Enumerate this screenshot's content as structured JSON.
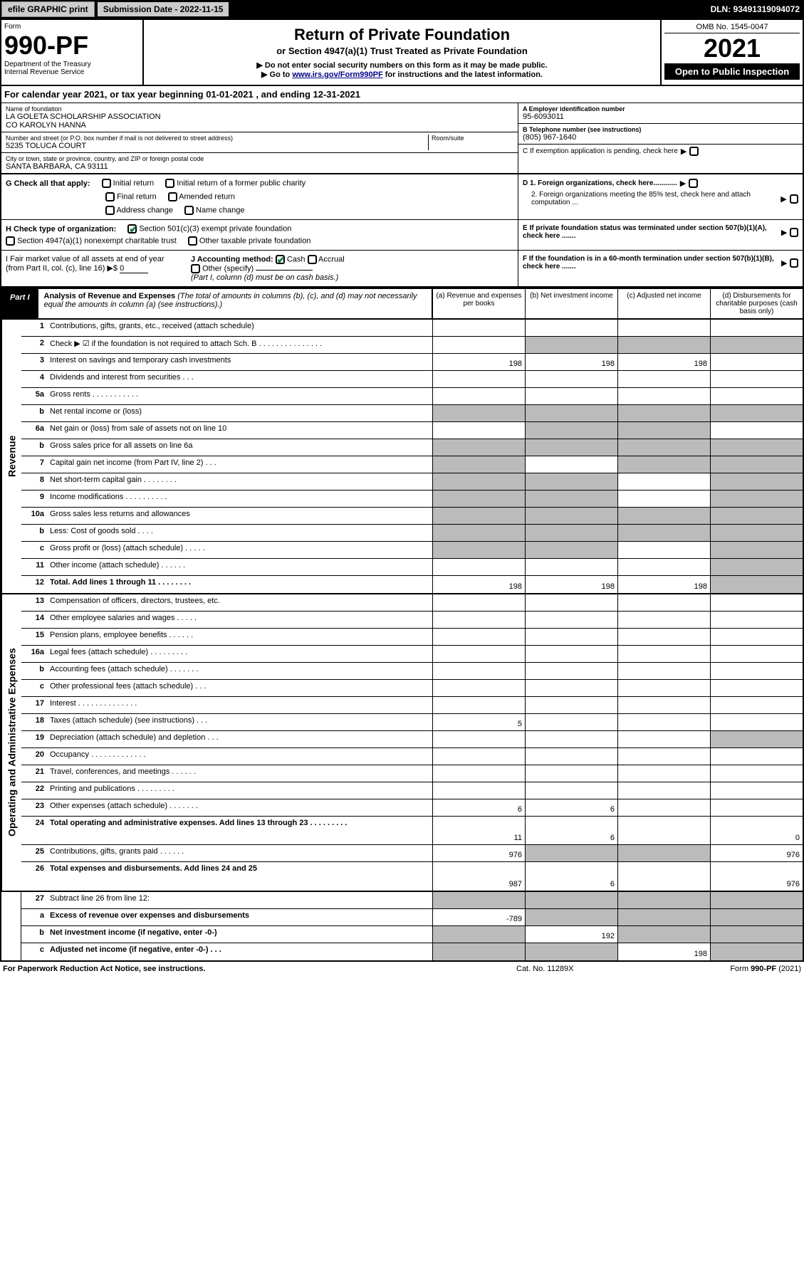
{
  "header_bar": {
    "efile_btn": "efile GRAPHIC print",
    "submission_date": "Submission Date - 2022-11-15",
    "dln": "DLN: 93491319094072"
  },
  "form_header": {
    "form_label": "Form",
    "form_number": "990-PF",
    "dept": "Department of the Treasury",
    "irs": "Internal Revenue Service",
    "title": "Return of Private Foundation",
    "subtitle": "or Section 4947(a)(1) Trust Treated as Private Foundation",
    "warning": "▶ Do not enter social security numbers on this form as it may be made public.",
    "goto_prefix": "▶ Go to ",
    "goto_link": "www.irs.gov/Form990PF",
    "goto_suffix": " for instructions and the latest information.",
    "omb": "OMB No. 1545-0047",
    "year": "2021",
    "open_public": "Open to Public Inspection"
  },
  "cal_year": "For calendar year 2021, or tax year beginning 01-01-2021            , and ending 12-31-2021",
  "info": {
    "name_lbl": "Name of foundation",
    "name_val": "LA GOLETA SCHOLARSHIP ASSOCIATION\nCO KAROLYN HANNA",
    "addr_lbl": "Number and street (or P.O. box number if mail is not delivered to street address)",
    "addr_val": "5235 TOLUCA COURT",
    "room_lbl": "Room/suite",
    "city_lbl": "City or town, state or province, country, and ZIP or foreign postal code",
    "city_val": "SANTA BARBARA, CA  93111",
    "ein_lbl": "A Employer identification number",
    "ein_val": "95-6093011",
    "tel_lbl": "B Telephone number (see instructions)",
    "tel_val": "(805) 967-1640",
    "c_lbl": "C If exemption application is pending, check here",
    "d1_lbl": "D 1. Foreign organizations, check here............",
    "d2_lbl": "2. Foreign organizations meeting the 85% test, check here and attach computation ...",
    "e_lbl": "E If private foundation status was terminated under section 507(b)(1)(A), check here .......",
    "f_lbl": "F If the foundation is in a 60-month termination under section 507(b)(1)(B), check here .......",
    "g_lbl": "G Check all that apply:",
    "g_opts": [
      "Initial return",
      "Initial return of a former public charity",
      "Final return",
      "Amended return",
      "Address change",
      "Name change"
    ],
    "h_lbl": "H Check type of organization:",
    "h_opts": [
      "Section 501(c)(3) exempt private foundation",
      "Section 4947(a)(1) nonexempt charitable trust",
      "Other taxable private foundation"
    ],
    "i_lbl": "I Fair market value of all assets at end of year (from Part II, col. (c), line 16) ▶$",
    "i_val": "0",
    "j_lbl": "J Accounting method:",
    "j_opts": [
      "Cash",
      "Accrual",
      "Other (specify)"
    ],
    "j_note": "(Part I, column (d) must be on cash basis.)"
  },
  "part1": {
    "label": "Part I",
    "title": "Analysis of Revenue and Expenses",
    "title_note": "(The total of amounts in columns (b), (c), and (d) may not necessarily equal the amounts in column (a) (see instructions).)",
    "col_a": "(a) Revenue and expenses per books",
    "col_b": "(b) Net investment income",
    "col_c": "(c) Adjusted net income",
    "col_d": "(d) Disbursements for charitable purposes (cash basis only)"
  },
  "sections": {
    "revenue": "Revenue",
    "expenses": "Operating and Administrative Expenses"
  },
  "rows": [
    {
      "n": "1",
      "t": "Contributions, gifts, grants, etc., received (attach schedule)",
      "a": "",
      "b": "",
      "c": "",
      "d": "",
      "db": true,
      "dc": true
    },
    {
      "n": "2",
      "t": "Check ▶ ☑ if the foundation is not required to attach Sch. B      .  .  .  .  .  .  .  .  .  .  .  .  .  .  .",
      "a": "",
      "b": "g",
      "c": "g",
      "d": "g"
    },
    {
      "n": "3",
      "t": "Interest on savings and temporary cash investments",
      "a": "198",
      "b": "198",
      "c": "198",
      "d": ""
    },
    {
      "n": "4",
      "t": "Dividends and interest from securities    .   .   .",
      "a": "",
      "b": "",
      "c": "",
      "d": ""
    },
    {
      "n": "5a",
      "t": "Gross rents    .   .   .   .   .   .   .   .   .   .   .",
      "a": "",
      "b": "",
      "c": "",
      "d": ""
    },
    {
      "n": "b",
      "t": "Net rental income or (loss)",
      "a": "g",
      "b": "g",
      "c": "g",
      "d": "g"
    },
    {
      "n": "6a",
      "t": "Net gain or (loss) from sale of assets not on line 10",
      "a": "",
      "b": "g",
      "c": "g",
      "d": ""
    },
    {
      "n": "b",
      "t": "Gross sales price for all assets on line 6a",
      "a": "g",
      "b": "g",
      "c": "g",
      "d": "g"
    },
    {
      "n": "7",
      "t": "Capital gain net income (from Part IV, line 2)   .   .   .",
      "a": "g",
      "b": "",
      "c": "g",
      "d": "g"
    },
    {
      "n": "8",
      "t": "Net short-term capital gain  .   .   .   .   .   .   .   .",
      "a": "g",
      "b": "g",
      "c": "",
      "d": "g"
    },
    {
      "n": "9",
      "t": "Income modifications  .   .   .   .   .   .   .   .   .   .",
      "a": "g",
      "b": "g",
      "c": "",
      "d": "g"
    },
    {
      "n": "10a",
      "t": "Gross sales less returns and allowances",
      "a": "g",
      "b": "g",
      "c": "g",
      "d": "g"
    },
    {
      "n": "b",
      "t": "Less: Cost of goods sold   .   .   .   .",
      "a": "g",
      "b": "g",
      "c": "g",
      "d": "g"
    },
    {
      "n": "c",
      "t": "Gross profit or (loss) (attach schedule)    .   .   .   .   .",
      "a": "g",
      "b": "g",
      "c": "",
      "d": "g"
    },
    {
      "n": "11",
      "t": "Other income (attach schedule)    .   .   .   .   .   .",
      "a": "",
      "b": "",
      "c": "",
      "d": "g"
    },
    {
      "n": "12",
      "t": "Total. Add lines 1 through 11   .   .   .   .   .   .   .   .",
      "a": "198",
      "b": "198",
      "c": "198",
      "d": "g",
      "bold": true
    }
  ],
  "rows2": [
    {
      "n": "13",
      "t": "Compensation of officers, directors, trustees, etc.",
      "a": "",
      "b": "",
      "c": "",
      "d": ""
    },
    {
      "n": "14",
      "t": "Other employee salaries and wages   .   .   .   .   .",
      "a": "",
      "b": "",
      "c": "",
      "d": ""
    },
    {
      "n": "15",
      "t": "Pension plans, employee benefits  .   .   .   .   .   .",
      "a": "",
      "b": "",
      "c": "",
      "d": ""
    },
    {
      "n": "16a",
      "t": "Legal fees (attach schedule) .   .   .   .   .   .   .   .   .",
      "a": "",
      "b": "",
      "c": "",
      "d": ""
    },
    {
      "n": "b",
      "t": "Accounting fees (attach schedule)  .   .   .   .   .   .   .",
      "a": "",
      "b": "",
      "c": "",
      "d": ""
    },
    {
      "n": "c",
      "t": "Other professional fees (attach schedule)    .   .   .",
      "a": "",
      "b": "",
      "c": "",
      "d": ""
    },
    {
      "n": "17",
      "t": "Interest  .   .   .   .   .   .   .   .   .   .   .   .   .   .",
      "a": "",
      "b": "",
      "c": "",
      "d": ""
    },
    {
      "n": "18",
      "t": "Taxes (attach schedule) (see instructions)    .   .   .",
      "a": "5",
      "b": "",
      "c": "",
      "d": ""
    },
    {
      "n": "19",
      "t": "Depreciation (attach schedule) and depletion   .   .   .",
      "a": "",
      "b": "",
      "c": "",
      "d": "g"
    },
    {
      "n": "20",
      "t": "Occupancy .   .   .   .   .   .   .   .   .   .   .   .   .",
      "a": "",
      "b": "",
      "c": "",
      "d": ""
    },
    {
      "n": "21",
      "t": "Travel, conferences, and meetings  .   .   .   .   .   .",
      "a": "",
      "b": "",
      "c": "",
      "d": ""
    },
    {
      "n": "22",
      "t": "Printing and publications  .   .   .   .   .   .   .   .   .",
      "a": "",
      "b": "",
      "c": "",
      "d": ""
    },
    {
      "n": "23",
      "t": "Other expenses (attach schedule)  .   .   .   .   .   .   .",
      "a": "6",
      "b": "6",
      "c": "",
      "d": "",
      "icon": true
    },
    {
      "n": "24",
      "t": "Total operating and administrative expenses. Add lines 13 through 23   .   .   .   .   .   .   .   .   .",
      "a": "11",
      "b": "6",
      "c": "",
      "d": "0",
      "bold": true,
      "tall": true
    },
    {
      "n": "25",
      "t": "Contributions, gifts, grants paid    .   .   .   .   .   .",
      "a": "976",
      "b": "g",
      "c": "g",
      "d": "976"
    },
    {
      "n": "26",
      "t": "Total expenses and disbursements. Add lines 24 and 25",
      "a": "987",
      "b": "6",
      "c": "",
      "d": "976",
      "bold": true,
      "tall": true
    }
  ],
  "rows3": [
    {
      "n": "27",
      "t": "Subtract line 26 from line 12:",
      "a": "g",
      "b": "g",
      "c": "g",
      "d": "g"
    },
    {
      "n": "a",
      "t": "Excess of revenue over expenses and disbursements",
      "a": "-789",
      "b": "g",
      "c": "g",
      "d": "g",
      "bold": true
    },
    {
      "n": "b",
      "t": "Net investment income (if negative, enter -0-)",
      "a": "g",
      "b": "192",
      "c": "g",
      "d": "g",
      "bold": true
    },
    {
      "n": "c",
      "t": "Adjusted net income (if negative, enter -0-)   .   .   .",
      "a": "g",
      "b": "g",
      "c": "198",
      "d": "g",
      "bold": true
    }
  ],
  "footer": {
    "left": "For Paperwork Reduction Act Notice, see instructions.",
    "center": "Cat. No. 11289X",
    "right": "Form 990-PF (2021)"
  }
}
